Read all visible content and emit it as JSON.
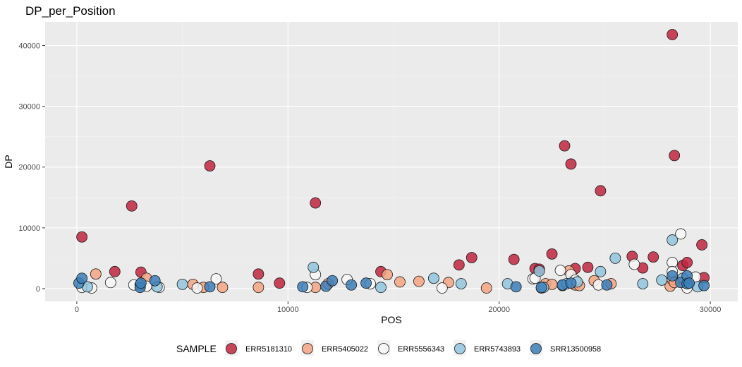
{
  "chart_data": {
    "type": "scatter",
    "title": "DP_per_Position",
    "xlabel": "POS",
    "ylabel": "DP",
    "xlim": [
      -1500,
      31300
    ],
    "ylim": [
      -2100,
      43900
    ],
    "x_ticks": [
      0,
      10000,
      20000,
      30000
    ],
    "x_tick_labels": [
      "0",
      "10000",
      "20000",
      "30000"
    ],
    "y_ticks": [
      0,
      10000,
      20000,
      30000,
      40000
    ],
    "y_tick_labels": [
      "0",
      "10000",
      "20000",
      "30000",
      "40000"
    ],
    "grid": true,
    "legend_position": "bottom",
    "legend_title": "SAMPLE",
    "series": [
      {
        "name": "ERR5181310",
        "color": "#c0263f",
        "points": [
          [
            241,
            8500
          ],
          [
            1800,
            2800
          ],
          [
            2600,
            13600
          ],
          [
            3037,
            2700
          ],
          [
            6300,
            20200
          ],
          [
            8600,
            2400
          ],
          [
            9600,
            900
          ],
          [
            11300,
            14100
          ],
          [
            14400,
            2800
          ],
          [
            18100,
            3900
          ],
          [
            18700,
            5100
          ],
          [
            20700,
            4800
          ],
          [
            21700,
            3300
          ],
          [
            21900,
            3200
          ],
          [
            22500,
            5700
          ],
          [
            23100,
            23500
          ],
          [
            23400,
            20500
          ],
          [
            23600,
            3300
          ],
          [
            24200,
            3500
          ],
          [
            24800,
            16100
          ],
          [
            26300,
            5300
          ],
          [
            26800,
            3400
          ],
          [
            27300,
            5200
          ],
          [
            28200,
            41800
          ],
          [
            28300,
            21900
          ],
          [
            28700,
            3800
          ],
          [
            28900,
            4300
          ],
          [
            29600,
            7200
          ],
          [
            29700,
            1800
          ]
        ]
      },
      {
        "name": "ERR5405022",
        "color": "#f4a582",
        "points": [
          [
            900,
            2400
          ],
          [
            3300,
            1700
          ],
          [
            5500,
            700
          ],
          [
            6000,
            200
          ],
          [
            6900,
            200
          ],
          [
            8600,
            200
          ],
          [
            11300,
            200
          ],
          [
            11900,
            800
          ],
          [
            14700,
            2300
          ],
          [
            15300,
            1100
          ],
          [
            16200,
            1200
          ],
          [
            17600,
            1000
          ],
          [
            19400,
            100
          ],
          [
            22200,
            800
          ],
          [
            22500,
            700
          ],
          [
            23300,
            2900
          ],
          [
            23600,
            600
          ],
          [
            23800,
            500
          ],
          [
            24500,
            1300
          ],
          [
            25300,
            800
          ],
          [
            28100,
            400
          ],
          [
            28200,
            1500
          ],
          [
            28300,
            1000
          ]
        ]
      },
      {
        "name": "ERR5556343",
        "color": "#f7f7f7",
        "points": [
          [
            241,
            200
          ],
          [
            700,
            100
          ],
          [
            1600,
            1000
          ],
          [
            2700,
            600
          ],
          [
            3300,
            400
          ],
          [
            3900,
            200
          ],
          [
            5700,
            100
          ],
          [
            6600,
            1600
          ],
          [
            10900,
            200
          ],
          [
            11300,
            2300
          ],
          [
            12800,
            1500
          ],
          [
            13900,
            800
          ],
          [
            17300,
            100
          ],
          [
            21600,
            1600
          ],
          [
            21700,
            1700
          ],
          [
            22000,
            100
          ],
          [
            22900,
            3000
          ],
          [
            23400,
            2300
          ],
          [
            23600,
            1400
          ],
          [
            24700,
            600
          ],
          [
            26400,
            4000
          ],
          [
            28200,
            4300
          ],
          [
            28200,
            2800
          ],
          [
            28600,
            9000
          ],
          [
            28900,
            100
          ],
          [
            29300,
            1900
          ]
        ]
      },
      {
        "name": "ERR5743893",
        "color": "#92c5de",
        "points": [
          [
            500,
            300
          ],
          [
            3000,
            600
          ],
          [
            3800,
            300
          ],
          [
            5000,
            700
          ],
          [
            11200,
            3500
          ],
          [
            14400,
            200
          ],
          [
            16900,
            1700
          ],
          [
            18200,
            800
          ],
          [
            20400,
            800
          ],
          [
            21900,
            2900
          ],
          [
            22100,
            200
          ],
          [
            23000,
            500
          ],
          [
            23200,
            800
          ],
          [
            23700,
            1100
          ],
          [
            24800,
            2800
          ],
          [
            25500,
            5000
          ],
          [
            26800,
            800
          ],
          [
            27700,
            1400
          ],
          [
            28200,
            8000
          ],
          [
            28700,
            1700
          ],
          [
            29400,
            300
          ]
        ]
      },
      {
        "name": "SRR13500958",
        "color": "#3c7eb8",
        "points": [
          [
            100,
            900
          ],
          [
            241,
            1700
          ],
          [
            3000,
            200
          ],
          [
            3037,
            900
          ],
          [
            3700,
            1300
          ],
          [
            6300,
            300
          ],
          [
            10700,
            300
          ],
          [
            11800,
            400
          ],
          [
            12100,
            1300
          ],
          [
            13000,
            600
          ],
          [
            13700,
            900
          ],
          [
            20800,
            300
          ],
          [
            22000,
            200
          ],
          [
            23000,
            600
          ],
          [
            23400,
            900
          ],
          [
            25100,
            600
          ],
          [
            28200,
            2100
          ],
          [
            28600,
            1000
          ],
          [
            28900,
            2100
          ],
          [
            28900,
            800
          ],
          [
            29000,
            900
          ],
          [
            29700,
            500
          ]
        ]
      }
    ]
  }
}
